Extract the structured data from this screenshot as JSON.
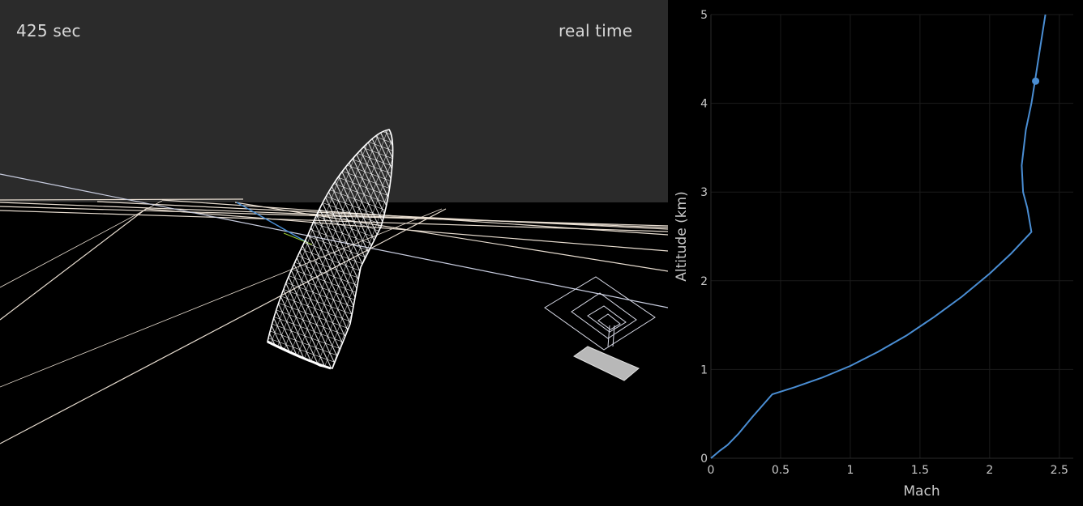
{
  "hud": {
    "time": "425 sec",
    "speed_mode": "real time"
  },
  "colors": {
    "background": "#000000",
    "sky": "#2b2b2b",
    "trajectory": "#4a8ed4",
    "grid_lines": "#e8ddd0",
    "rocket_wireframe": "#ffffff"
  },
  "chart_data": {
    "type": "line",
    "xlabel": "Mach",
    "ylabel": "Altitude (km)",
    "xlim": [
      0,
      2.6
    ],
    "ylim": [
      0,
      5
    ],
    "xticks": [
      "0",
      "0.5",
      "1",
      "1.5",
      "2",
      "2.5"
    ],
    "yticks": [
      "0",
      "1",
      "2",
      "3",
      "4",
      "5"
    ],
    "grid": true,
    "series": [
      {
        "color": "#4a8ed4",
        "x": [
          0,
          0.06,
          0.12,
          0.2,
          0.3,
          0.44,
          0.6,
          0.8,
          1.0,
          1.2,
          1.4,
          1.6,
          1.8,
          2.0,
          2.15,
          2.3,
          2.27,
          2.24,
          2.23,
          2.26,
          2.3,
          2.33,
          2.36,
          2.4
        ],
        "y": [
          0,
          0.08,
          0.15,
          0.28,
          0.47,
          0.72,
          0.8,
          0.91,
          1.04,
          1.2,
          1.38,
          1.59,
          1.82,
          2.08,
          2.3,
          2.55,
          2.82,
          3.0,
          3.3,
          3.7,
          4.0,
          4.3,
          4.6,
          5.0
        ]
      }
    ],
    "current_point": {
      "x": 2.33,
      "y": 4.25
    }
  }
}
